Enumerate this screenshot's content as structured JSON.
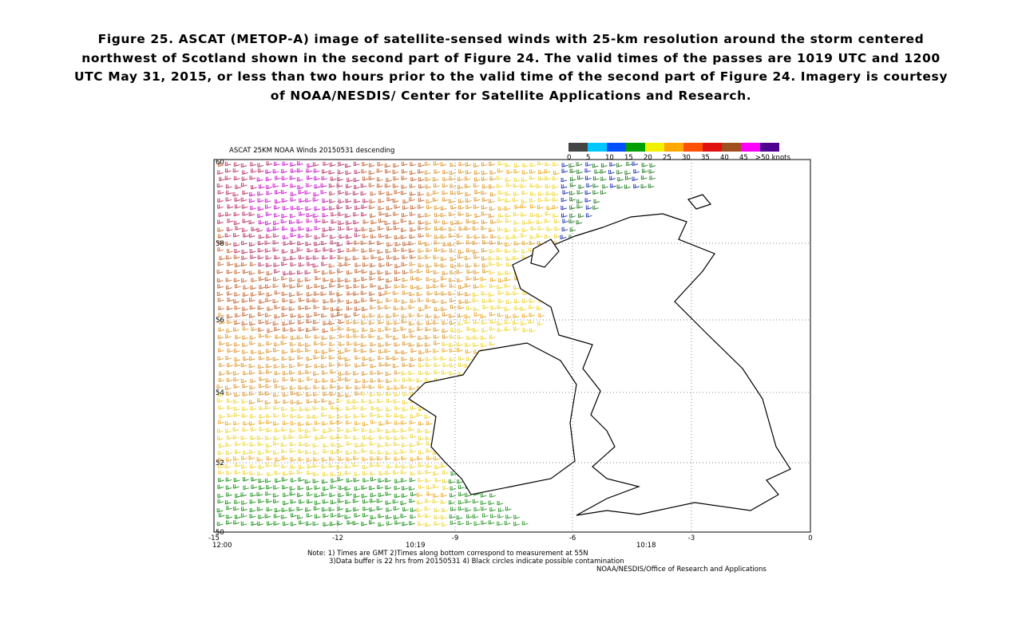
{
  "caption": [
    "Figure 25.  ASCAT (METOP-A) image of satellite-sensed winds with 25-km resolution around the storm centered",
    "northwest of Scotland shown in the second part of Figure 24.  The valid times of the passes are 1019 UTC and 1200",
    "UTC May 31, 2015, or less than two hours prior to the valid time of the second part of Figure 24.  Imagery is courtesy",
    "of NOAA/NESDIS/ Center for Satellite Applications and Research."
  ],
  "map": {
    "title": "ASCAT 25KM NOAA Winds 20150531 descending",
    "legend": [
      {
        "label": "0",
        "color": "#444444"
      },
      {
        "label": "5",
        "color": "#00c8ff"
      },
      {
        "label": "10",
        "color": "#0050ff"
      },
      {
        "label": "15",
        "color": "#00a000"
      },
      {
        "label": "20",
        "color": "#f0f000"
      },
      {
        "label": "25",
        "color": "#ffa800"
      },
      {
        "label": "30",
        "color": "#ff5000"
      },
      {
        "label": "35",
        "color": "#e01010"
      },
      {
        "label": "40",
        "color": "#a05020"
      },
      {
        "label": "45",
        "color": "#ff00ff"
      },
      {
        "label": ">50 knots",
        "color": "#500090"
      }
    ],
    "lat_labels": [
      "60",
      "58",
      "56",
      "54",
      "52",
      "50"
    ],
    "lon_labels": [
      "-15",
      "-12",
      "-9",
      "-6",
      "-3",
      "0"
    ],
    "times": [
      "12:00",
      "10:19",
      "10:18"
    ],
    "notes": [
      "Note: 1) Times are GMT 2)Times along bottom correspond to measurement at 55N",
      "3)Data buffer is 22 hrs from 20150531 4) Black circles indicate possible contamination",
      "NOAA/NESDIS/Office of Research and Applications"
    ]
  }
}
